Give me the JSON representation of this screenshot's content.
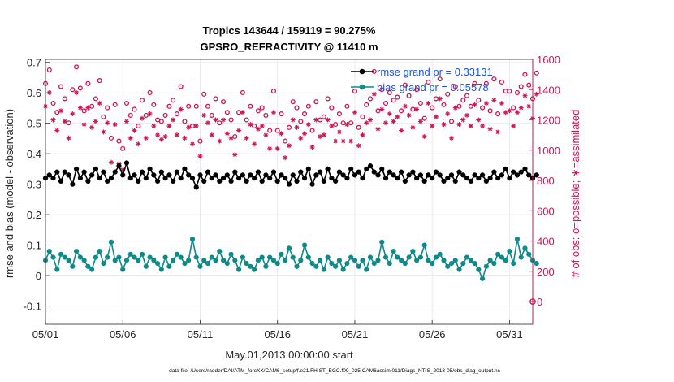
{
  "chart_data": {
    "type": "line",
    "title": "Tropics 143644 / 159119 = 90.275%",
    "subtitle": "GPSRO_REFRACTIVITY @ 11410 m",
    "xlabel": "May.01,2013 00:00:00 start",
    "ylabel_left": "rmse and bias (model - observation)",
    "ylabel_right": "# of obs: o=possible; ∗=assimilated",
    "footer": "data file: /Users/raeder/DAI/ATM_forcXX/CAM6_setup/f.e21.FHIST_BGC.f09_025.CAM6assim.011/Diags_NTrS_2013-05/obs_diag_output.nc",
    "xlim": [
      0,
      31.5
    ],
    "ylim_left": [
      -0.16,
      0.71
    ],
    "ylim_right": [
      -150,
      1600
    ],
    "x_tick_values": [
      0,
      5,
      10,
      15,
      20,
      25,
      30
    ],
    "x_tick_labels": [
      "05/01",
      "05/06",
      "05/11",
      "05/16",
      "05/21",
      "05/26",
      "05/31"
    ],
    "y_left_ticks": [
      "-0.1",
      "0",
      "0.1",
      "0.2",
      "0.3",
      "0.4",
      "0.5",
      "0.6",
      "0.7"
    ],
    "y_left_tick_values": [
      -0.1,
      0,
      0.1,
      0.2,
      0.3,
      0.4,
      0.5,
      0.6,
      0.7
    ],
    "y_right_ticks": [
      "0",
      "200",
      "400",
      "600",
      "800",
      "1000",
      "1200",
      "1400",
      "1600"
    ],
    "y_right_tick_values": [
      0,
      200,
      400,
      600,
      800,
      1000,
      1200,
      1400,
      1600
    ],
    "legend_position": "top-right",
    "colors": {
      "rmse": "#000000",
      "bias": "#0f8a8a",
      "obs": "#cc1457",
      "zero_line": "#b0b0b0"
    },
    "series": [
      {
        "name": "rmse grand pr = 0.33131",
        "axis": "left",
        "values": [
          0.32,
          0.33,
          0.32,
          0.34,
          0.31,
          0.34,
          0.33,
          0.3,
          0.35,
          0.32,
          0.34,
          0.31,
          0.33,
          0.35,
          0.32,
          0.34,
          0.31,
          0.32,
          0.34,
          0.36,
          0.33,
          0.37,
          0.32,
          0.33,
          0.31,
          0.34,
          0.32,
          0.35,
          0.33,
          0.31,
          0.34,
          0.32,
          0.33,
          0.31,
          0.34,
          0.32,
          0.35,
          0.33,
          0.32,
          0.29,
          0.33,
          0.31,
          0.34,
          0.32,
          0.33,
          0.31,
          0.32,
          0.33,
          0.31,
          0.34,
          0.32,
          0.33,
          0.31,
          0.33,
          0.32,
          0.34,
          0.31,
          0.33,
          0.32,
          0.34,
          0.31,
          0.33,
          0.32,
          0.3,
          0.33,
          0.31,
          0.34,
          0.32,
          0.35,
          0.3,
          0.33,
          0.34,
          0.31,
          0.35,
          0.32,
          0.31,
          0.34,
          0.33,
          0.32,
          0.35,
          0.33,
          0.34,
          0.32,
          0.35,
          0.36,
          0.34,
          0.33,
          0.35,
          0.32,
          0.34,
          0.33,
          0.32,
          0.34,
          0.31,
          0.33,
          0.34,
          0.32,
          0.33,
          0.31,
          0.33,
          0.32,
          0.34,
          0.33,
          0.31,
          0.32,
          0.33,
          0.31,
          0.34,
          0.33,
          0.32,
          0.31,
          0.33,
          0.32,
          0.33,
          0.31,
          0.32,
          0.34,
          0.32,
          0.33,
          0.35,
          0.32,
          0.34,
          0.33,
          0.34,
          0.35,
          0.33,
          0.32,
          0.33
        ]
      },
      {
        "name": "bias grand pr = 0.05578",
        "axis": "left",
        "values": [
          0.05,
          0.08,
          0.06,
          0.02,
          0.07,
          0.06,
          0.05,
          0.03,
          0.08,
          0.06,
          0.05,
          0.03,
          0.02,
          0.06,
          0.08,
          0.04,
          0.06,
          0.11,
          0.05,
          0.06,
          0.02,
          0.05,
          0.07,
          0.06,
          0.05,
          0.07,
          0.03,
          0.06,
          0.05,
          0.04,
          0.02,
          0.06,
          0.03,
          0.05,
          0.07,
          0.06,
          0.04,
          0.05,
          0.12,
          0.06,
          0.03,
          0.05,
          0.04,
          0.06,
          0.05,
          0.08,
          0.05,
          0.04,
          0.07,
          0.05,
          0.02,
          0.06,
          0.04,
          0.03,
          0.02,
          0.05,
          0.06,
          0.03,
          0.06,
          0.05,
          0.04,
          0.07,
          0.05,
          0.09,
          0.06,
          0.03,
          0.05,
          0.1,
          0.06,
          0.04,
          0.03,
          0.05,
          0.02,
          0.06,
          0.04,
          0.03,
          0.05,
          0.02,
          0.04,
          0.06,
          0.05,
          0.03,
          0.05,
          0.02,
          0.06,
          0.04,
          0.05,
          0.11,
          0.06,
          0.04,
          0.08,
          0.06,
          0.05,
          0.04,
          0.06,
          0.08,
          0.05,
          0.06,
          0.1,
          0.05,
          0.04,
          0.06,
          0.07,
          0.05,
          0.03,
          0.04,
          0.05,
          0.02,
          0.04,
          0.06,
          0.05,
          0.04,
          0.02,
          -0.01,
          0.03,
          0.05,
          0.04,
          0.07,
          0.06,
          0.05,
          0.08,
          0.04,
          0.12,
          0.06,
          0.09,
          0.07,
          0.05,
          0.04
        ]
      },
      {
        "name": "possible",
        "axis": "right",
        "values": [
          1440,
          1530,
          1310,
          1250,
          1420,
          1340,
          1180,
          1400,
          1550,
          1410,
          1260,
          1440,
          1290,
          1340,
          1460,
          1220,
          1280,
          1080,
          1300,
          1060,
          1010,
          1310,
          1230,
          1270,
          1160,
          1330,
          1230,
          1380,
          1300,
          1200,
          1190,
          1230,
          1290,
          1330,
          1240,
          1420,
          1190,
          1290,
          1160,
          1290,
          1060,
          1370,
          1290,
          1230,
          1340,
          1180,
          1320,
          1250,
          1200,
          1090,
          1250,
          1380,
          1200,
          1290,
          1160,
          1260,
          1280,
          1230,
          1130,
          1390,
          1130,
          1240,
          1060,
          1150,
          1320,
          1280,
          1190,
          1240,
          1290,
          1130,
          1320,
          1200,
          1220,
          1340,
          1280,
          1170,
          1240,
          1180,
          1290,
          1180,
          1390,
          1150,
          1220,
          1300,
          1340,
          1520,
          1260,
          1400,
          1310,
          1380,
          1330,
          1350,
          1260,
          1430,
          1360,
          1270,
          1400,
          1310,
          1210,
          1450,
          1280,
          1340,
          1470,
          1300,
          1370,
          1190,
          1420,
          1290,
          1330,
          1360,
          1290,
          1440,
          1330,
          1280,
          1440,
          1260,
          1470,
          1240,
          1450,
          1390,
          1390,
          1280,
          1380,
          1420,
          1500,
          1430,
          1340,
          1510
        ]
      },
      {
        "name": "assimilated",
        "axis": "right",
        "values": [
          1290,
          1380,
          1200,
          1130,
          1260,
          1190,
          1080,
          1240,
          1380,
          1280,
          1170,
          1280,
          1150,
          1190,
          1310,
          1120,
          1180,
          920,
          1170,
          910,
          870,
          1190,
          1080,
          1130,
          1040,
          1210,
          1080,
          1240,
          1160,
          1100,
          1070,
          1090,
          1160,
          1200,
          1100,
          1270,
          1080,
          1150,
          1040,
          1160,
          960,
          1230,
          1180,
          1100,
          1200,
          1060,
          1200,
          1110,
          1080,
          970,
          1130,
          1250,
          1080,
          1170,
          1040,
          1140,
          1160,
          1100,
          1010,
          1250,
          1010,
          1110,
          950,
          1030,
          1200,
          1150,
          1080,
          1110,
          1170,
          1020,
          1200,
          1090,
          1100,
          1200,
          1160,
          1060,
          1120,
          1060,
          1170,
          1060,
          1250,
          1030,
          1100,
          1180,
          1200,
          1370,
          1140,
          1270,
          1180,
          1240,
          1190,
          1220,
          1130,
          1290,
          1230,
          1150,
          1270,
          1190,
          1090,
          1310,
          1160,
          1220,
          1340,
          1170,
          1240,
          1080,
          1280,
          1170,
          1200,
          1230,
          1160,
          1300,
          1200,
          1160,
          1310,
          1140,
          1330,
          1120,
          1310,
          1250,
          1260,
          1160,
          1250,
          1280,
          1360,
          1290,
          1210,
          1370
        ]
      }
    ]
  }
}
